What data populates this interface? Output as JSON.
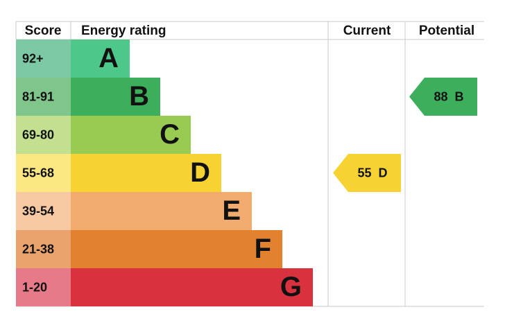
{
  "header": {
    "score": "Score",
    "rating": "Energy rating",
    "current": "Current",
    "potential": "Potential"
  },
  "bands": [
    {
      "score": "92+",
      "letter": "A",
      "color": "#4dc88a",
      "score_color": "#7dc9a5"
    },
    {
      "score": "81-91",
      "letter": "B",
      "color": "#3cae5c",
      "score_color": "#80c58c"
    },
    {
      "score": "69-80",
      "letter": "C",
      "color": "#99cb52",
      "score_color": "#c2e08f"
    },
    {
      "score": "55-68",
      "letter": "D",
      "color": "#f6d333",
      "score_color": "#fce883"
    },
    {
      "score": "39-54",
      "letter": "E",
      "color": "#f1ab6e",
      "score_color": "#f6c9a3"
    },
    {
      "score": "21-38",
      "letter": "F",
      "color": "#e2822f",
      "score_color": "#eba36e"
    },
    {
      "score": "1-20",
      "letter": "G",
      "color": "#d9323f",
      "score_color": "#e67a89"
    }
  ],
  "current": {
    "score": 55,
    "letter": "D"
  },
  "potential": {
    "score": 88,
    "letter": "B"
  }
}
